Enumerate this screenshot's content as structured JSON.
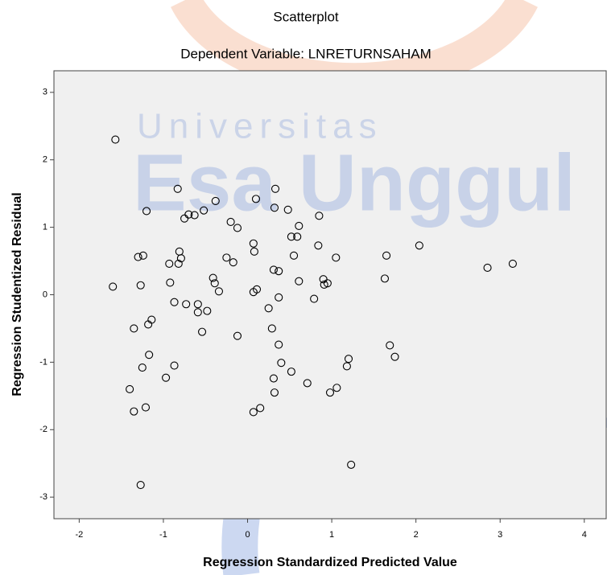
{
  "chart_data": {
    "type": "scatter",
    "title": "Scatterplot",
    "subtitle": "Dependent Variable: LNRETURNSAHAM",
    "x_label": "Regression Standardized Predicted Value",
    "y_label": "Regression Studentized Residual",
    "watermark": [
      "Universitas",
      "Esa Unggul"
    ],
    "xlim": [
      -2.3,
      4.26
    ],
    "ylim": [
      -3.32,
      3.32
    ],
    "xticks": [
      -2,
      -1,
      0,
      1,
      2,
      3,
      4
    ],
    "yticks": [
      -3,
      -2,
      -1,
      0,
      1,
      2,
      3
    ],
    "background": "#f0f0f0",
    "marker_color": "#000000",
    "x": [
      -1.57,
      -1.6,
      -1.2,
      -1.3,
      -1.24,
      -1.27,
      -1.35,
      -1.18,
      -1.14,
      -1.17,
      -1.25,
      -1.4,
      -1.35,
      -1.21,
      -1.27,
      -0.83,
      -0.75,
      -0.7,
      -0.63,
      -0.52,
      -0.38,
      -0.81,
      -0.79,
      -0.82,
      -0.93,
      -0.92,
      -0.87,
      -0.73,
      -0.59,
      -0.59,
      -0.48,
      -0.54,
      -0.87,
      -0.97,
      -0.41,
      -0.39,
      -0.34,
      -0.25,
      -0.17,
      -0.2,
      -0.12,
      -0.12,
      0.07,
      0.08,
      0.1,
      0.07,
      0.11,
      0.33,
      0.32,
      0.48,
      0.61,
      0.52,
      0.59,
      0.55,
      0.31,
      0.37,
      0.61,
      0.37,
      0.25,
      0.29,
      0.37,
      0.4,
      0.52,
      0.31,
      0.32,
      0.15,
      0.07,
      0.71,
      0.85,
      0.84,
      0.79,
      0.9,
      0.91,
      0.95,
      1.05,
      0.98,
      1.06,
      1.2,
      1.18,
      1.23,
      1.63,
      1.65,
      1.69,
      1.75,
      2.04,
      2.85,
      3.15
    ],
    "values": [
      2.3,
      0.12,
      1.24,
      0.56,
      0.58,
      0.14,
      -0.5,
      -0.44,
      -0.37,
      -0.89,
      -1.08,
      -1.4,
      -1.73,
      -1.67,
      -2.82,
      1.57,
      1.13,
      1.19,
      1.18,
      1.25,
      1.39,
      0.64,
      0.54,
      0.46,
      0.46,
      0.18,
      -0.11,
      -0.14,
      -0.14,
      -0.26,
      -0.24,
      -0.55,
      -1.05,
      -1.23,
      0.25,
      0.17,
      0.05,
      0.55,
      0.48,
      1.08,
      0.99,
      -0.61,
      0.76,
      0.64,
      1.42,
      0.04,
      0.08,
      1.57,
      1.29,
      1.26,
      1.02,
      0.86,
      0.86,
      0.58,
      0.37,
      0.35,
      0.2,
      -0.04,
      -0.2,
      -0.5,
      -0.74,
      -1.01,
      -1.14,
      -1.24,
      -1.45,
      -1.68,
      -1.74,
      -1.31,
      1.17,
      0.73,
      -0.06,
      0.23,
      0.15,
      0.17,
      0.55,
      -1.45,
      -1.38,
      -0.95,
      -1.06,
      -2.52,
      0.24,
      0.58,
      -0.75,
      -0.92,
      0.73,
      0.4,
      0.46
    ]
  }
}
